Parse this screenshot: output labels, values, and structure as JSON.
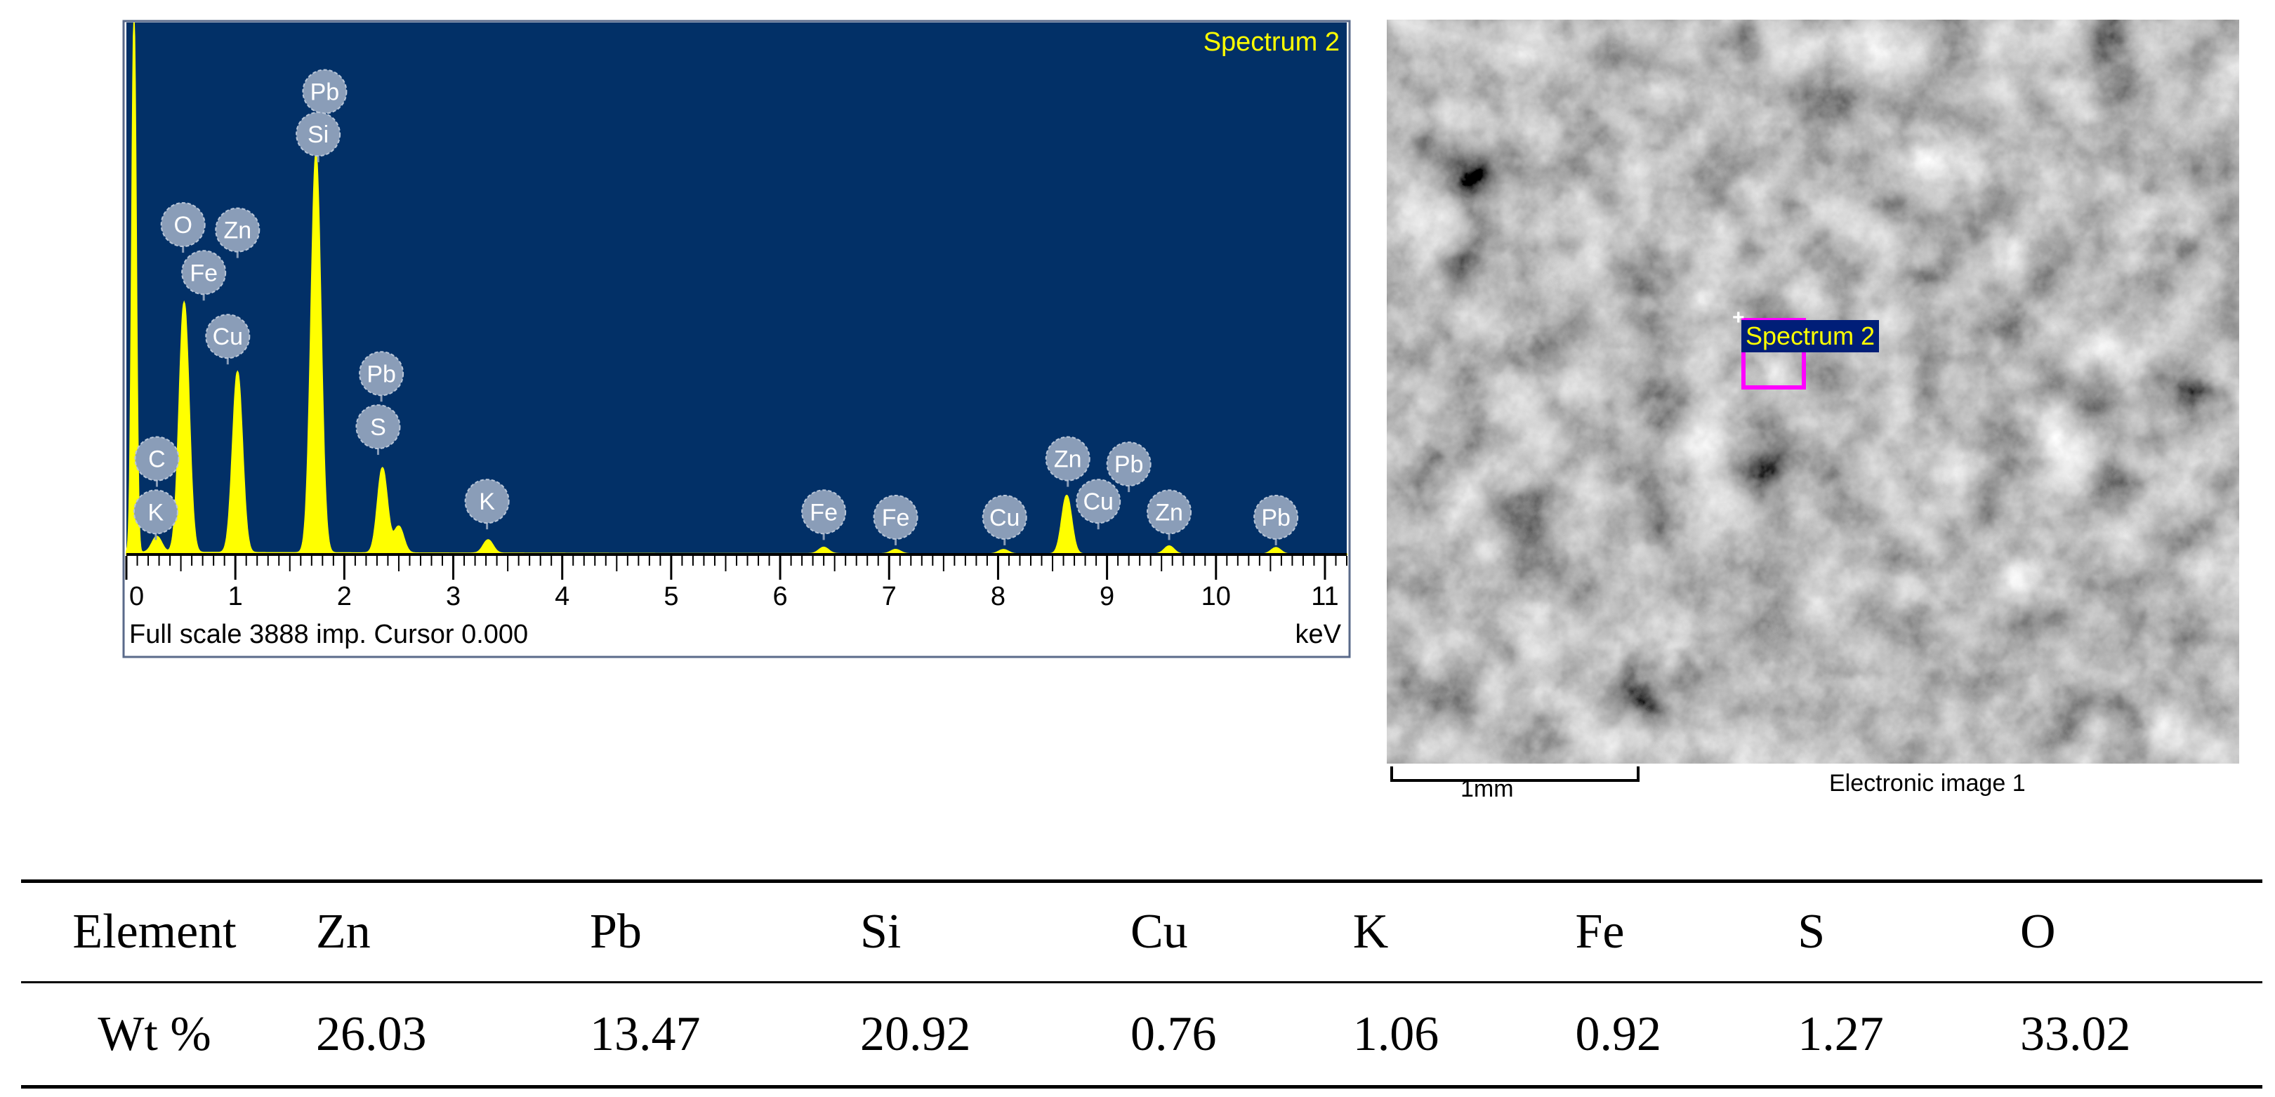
{
  "chart_data": {
    "type": "line",
    "title": "Spectrum 2",
    "footer_text": "Full scale 3888 imp. Cursor 0.000",
    "xlabel": "keV",
    "xlim": [
      0,
      11.2
    ],
    "x_ticks": [
      0,
      1,
      2,
      3,
      4,
      5,
      6,
      7,
      8,
      9,
      10,
      11
    ],
    "full_scale_counts": 3888,
    "colors": {
      "plot_background": "#023067",
      "spectrum": "#ffff00",
      "label_fill": "#8a9db8",
      "label_text": "#ffffff"
    },
    "peaks": [
      {
        "kev": 0.07,
        "height": 1.0
      },
      {
        "kev": 0.28,
        "height": 0.03
      },
      {
        "kev": 0.53,
        "height": 0.47
      },
      {
        "kev": 1.02,
        "height": 0.34
      },
      {
        "kev": 1.74,
        "height": 0.75
      },
      {
        "kev": 2.35,
        "height": 0.16
      },
      {
        "kev": 2.5,
        "height": 0.05
      },
      {
        "kev": 3.32,
        "height": 0.025
      },
      {
        "kev": 6.4,
        "height": 0.012
      },
      {
        "kev": 7.06,
        "height": 0.008
      },
      {
        "kev": 8.05,
        "height": 0.008
      },
      {
        "kev": 8.63,
        "height": 0.11
      },
      {
        "kev": 9.57,
        "height": 0.015
      },
      {
        "kev": 10.55,
        "height": 0.012
      }
    ],
    "annotations": [
      {
        "text": "Pb",
        "kev": 1.82,
        "level": 0.87
      },
      {
        "text": "Si",
        "kev": 1.76,
        "level": 0.79
      },
      {
        "text": "O",
        "kev": 0.52,
        "level": 0.62
      },
      {
        "text": "Zn",
        "kev": 1.02,
        "level": 0.61
      },
      {
        "text": "Fe",
        "kev": 0.71,
        "level": 0.53
      },
      {
        "text": "Cu",
        "kev": 0.93,
        "level": 0.41
      },
      {
        "text": "Pb",
        "kev": 2.34,
        "level": 0.34
      },
      {
        "text": "S",
        "kev": 2.31,
        "level": 0.24
      },
      {
        "text": "C",
        "kev": 0.28,
        "level": 0.18
      },
      {
        "text": "K",
        "kev": 0.27,
        "level": 0.08
      },
      {
        "text": "K",
        "kev": 3.31,
        "level": 0.1
      },
      {
        "text": "Fe",
        "kev": 6.4,
        "level": 0.08
      },
      {
        "text": "Fe",
        "kev": 7.06,
        "level": 0.07
      },
      {
        "text": "Cu",
        "kev": 8.06,
        "level": 0.07
      },
      {
        "text": "Zn",
        "kev": 8.64,
        "level": 0.18
      },
      {
        "text": "Pb",
        "kev": 9.2,
        "level": 0.17
      },
      {
        "text": "Cu",
        "kev": 8.92,
        "level": 0.1
      },
      {
        "text": "Zn",
        "kev": 9.57,
        "level": 0.08
      },
      {
        "text": "Pb",
        "kev": 10.55,
        "level": 0.07
      }
    ]
  },
  "sem_image": {
    "spectrum_label": "Spectrum 2",
    "scale_label": "1mm",
    "caption": "Electronic image 1"
  },
  "table": {
    "row_headers": [
      "Element",
      "Wt %"
    ],
    "elements": [
      "Zn",
      "Pb",
      "Si",
      "Cu",
      "K",
      "Fe",
      "S",
      "O"
    ],
    "wt_percent": [
      "26.03",
      "13.47",
      "20.92",
      "0.76",
      "1.06",
      "0.92",
      "1.27",
      "33.02"
    ]
  }
}
